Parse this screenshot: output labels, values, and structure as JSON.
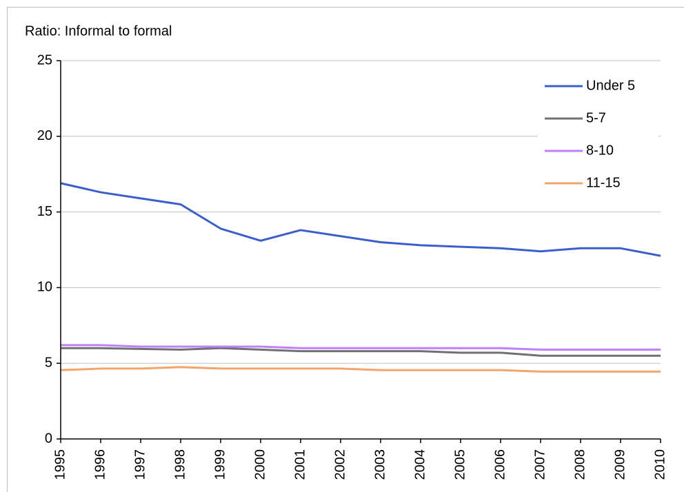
{
  "chart_data": {
    "type": "line",
    "y_label": "Ratio: Informal to formal",
    "x": [
      1995,
      1996,
      1997,
      1998,
      1999,
      2000,
      2001,
      2002,
      2003,
      2004,
      2005,
      2006,
      2007,
      2008,
      2009,
      2010
    ],
    "xlim": [
      1995,
      2010
    ],
    "xticks": [
      1995,
      1996,
      1997,
      1998,
      1999,
      2000,
      2001,
      2002,
      2003,
      2004,
      2005,
      2006,
      2007,
      2008,
      2009,
      2010
    ],
    "ylim": [
      0,
      25
    ],
    "yticks": [
      0,
      5,
      10,
      15,
      20,
      25
    ],
    "grid": true,
    "legend": "upper right",
    "series": [
      {
        "name": "Under 5",
        "color": "#3a5fcd",
        "values": [
          16.9,
          16.3,
          15.9,
          15.5,
          13.9,
          13.1,
          13.8,
          13.4,
          13.0,
          12.8,
          12.7,
          12.6,
          12.4,
          12.6,
          12.6,
          12.1
        ]
      },
      {
        "name": "5-7",
        "color": "#707070",
        "values": [
          6.0,
          6.0,
          5.95,
          5.9,
          6.0,
          5.9,
          5.8,
          5.8,
          5.8,
          5.8,
          5.7,
          5.7,
          5.5,
          5.5,
          5.5,
          5.5
        ]
      },
      {
        "name": "8-10",
        "color": "#bf7fff",
        "values": [
          6.2,
          6.2,
          6.1,
          6.1,
          6.1,
          6.1,
          6.0,
          6.0,
          6.0,
          6.0,
          6.0,
          6.0,
          5.9,
          5.9,
          5.9,
          5.9
        ]
      },
      {
        "name": "11-15",
        "color": "#f5a46a",
        "values": [
          4.55,
          4.65,
          4.65,
          4.75,
          4.65,
          4.65,
          4.65,
          4.65,
          4.55,
          4.55,
          4.55,
          4.55,
          4.45,
          4.45,
          4.45,
          4.45
        ]
      }
    ]
  }
}
